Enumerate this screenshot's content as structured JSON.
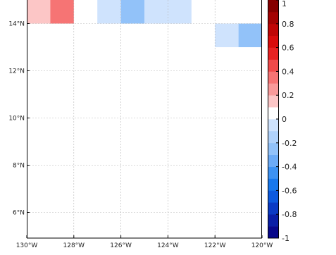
{
  "chart_data": {
    "type": "heatmap",
    "title": "",
    "xlabel": "",
    "ylabel": "",
    "xlim": [
      -130,
      -120
    ],
    "ylim": [
      5,
      15
    ],
    "grid": true,
    "x_ticks": [
      {
        "value": -130,
        "label": "130°W"
      },
      {
        "value": -128,
        "label": "128°W"
      },
      {
        "value": -126,
        "label": "126°W"
      },
      {
        "value": -124,
        "label": "124°W"
      },
      {
        "value": -122,
        "label": "122°W"
      },
      {
        "value": -120,
        "label": "120°W"
      }
    ],
    "y_ticks": [
      {
        "value": 6,
        "label": "6°N"
      },
      {
        "value": 8,
        "label": "8°N"
      },
      {
        "value": 10,
        "label": "10°N"
      },
      {
        "value": 12,
        "label": "12°N"
      },
      {
        "value": 14,
        "label": "14°N"
      }
    ],
    "cells": [
      {
        "lon0": -130,
        "lon1": -129,
        "lat0": 14,
        "lat1": 15,
        "value": 0.1
      },
      {
        "lon0": -129,
        "lon1": -128,
        "lat0": 14,
        "lat1": 15,
        "value": 0.3
      },
      {
        "lon0": -127,
        "lon1": -126,
        "lat0": 14,
        "lat1": 15,
        "value": -0.1
      },
      {
        "lon0": -126,
        "lon1": -125,
        "lat0": 14,
        "lat1": 15,
        "value": -0.3
      },
      {
        "lon0": -125,
        "lon1": -124,
        "lat0": 14,
        "lat1": 15,
        "value": -0.1
      },
      {
        "lon0": -124,
        "lon1": -123,
        "lat0": 14,
        "lat1": 15,
        "value": -0.1
      },
      {
        "lon0": -122,
        "lon1": -121,
        "lat0": 13,
        "lat1": 14,
        "value": -0.1
      },
      {
        "lon0": -121,
        "lon1": -120,
        "lat0": 13,
        "lat1": 14,
        "value": -0.3
      }
    ],
    "colorbar": {
      "min": -1,
      "max": 1,
      "levels": [
        {
          "from": -1.0,
          "to": -0.9,
          "color": "#08088a"
        },
        {
          "from": -0.9,
          "to": -0.8,
          "color": "#0a1fa6"
        },
        {
          "from": -0.8,
          "to": -0.7,
          "color": "#0b3bc4"
        },
        {
          "from": -0.7,
          "to": -0.6,
          "color": "#0d5ade"
        },
        {
          "from": -0.6,
          "to": -0.5,
          "color": "#1878ec"
        },
        {
          "from": -0.5,
          "to": -0.4,
          "color": "#3d92f2"
        },
        {
          "from": -0.4,
          "to": -0.3,
          "color": "#6cabf6"
        },
        {
          "from": -0.3,
          "to": -0.2,
          "color": "#92c2f9"
        },
        {
          "from": -0.2,
          "to": -0.1,
          "color": "#b0d2fb"
        },
        {
          "from": -0.1,
          "to": 0.0,
          "color": "#cfe3fd"
        },
        {
          "from": 0.0,
          "to": 0.1,
          "color": "#ffffff"
        },
        {
          "from": 0.1,
          "to": 0.2,
          "color": "#fcc6c6"
        },
        {
          "from": 0.2,
          "to": 0.3,
          "color": "#f99a9a"
        },
        {
          "from": 0.3,
          "to": 0.4,
          "color": "#f67474"
        },
        {
          "from": 0.4,
          "to": 0.5,
          "color": "#f04a4a"
        },
        {
          "from": 0.5,
          "to": 0.6,
          "color": "#e82222"
        },
        {
          "from": 0.6,
          "to": 0.7,
          "color": "#d80c0c"
        },
        {
          "from": 0.7,
          "to": 0.8,
          "color": "#bf0606"
        },
        {
          "from": 0.8,
          "to": 0.9,
          "color": "#a30303"
        },
        {
          "from": 0.9,
          "to": 1.0,
          "color": "#850000"
        }
      ],
      "ticks": [
        {
          "value": 1,
          "label": "1"
        },
        {
          "value": 0.8,
          "label": "0.8"
        },
        {
          "value": 0.6,
          "label": "0.6"
        },
        {
          "value": 0.4,
          "label": "0.4"
        },
        {
          "value": 0.2,
          "label": "0.2"
        },
        {
          "value": 0,
          "label": "0"
        },
        {
          "value": -0.2,
          "label": "-0.2"
        },
        {
          "value": -0.4,
          "label": "-0.4"
        },
        {
          "value": -0.6,
          "label": "-0.6"
        },
        {
          "value": -0.8,
          "label": "-0.8"
        },
        {
          "value": -1,
          "label": "-1"
        }
      ]
    }
  }
}
